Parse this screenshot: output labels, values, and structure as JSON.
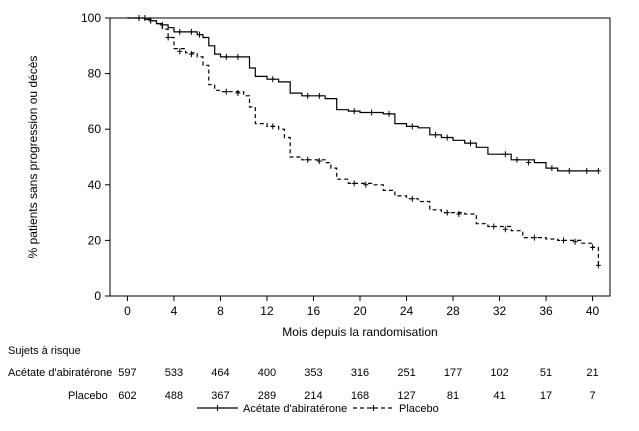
{
  "chart_data": {
    "type": "line",
    "xlabel": "Mois depuis la randomisation",
    "ylabel": "% patients sans progression ou décès",
    "xlim": [
      -1.5,
      41.5
    ],
    "ylim": [
      0,
      100
    ],
    "xticks": [
      0,
      4,
      8,
      12,
      16,
      20,
      24,
      28,
      32,
      36,
      40
    ],
    "yticks": [
      0,
      20,
      40,
      60,
      80,
      100
    ],
    "legend_position": "bottom-center",
    "grid": false,
    "series": [
      {
        "name": "Acétate d'abiratérone",
        "style": "solid",
        "color": "#000000",
        "points": [
          [
            0,
            100
          ],
          [
            1,
            100
          ],
          [
            1.5,
            99.5
          ],
          [
            2,
            99
          ],
          [
            2.5,
            98
          ],
          [
            3,
            97.5
          ],
          [
            3.5,
            96.5
          ],
          [
            4,
            95
          ],
          [
            5,
            95
          ],
          [
            6,
            94
          ],
          [
            6.5,
            93
          ],
          [
            7,
            90
          ],
          [
            7.5,
            87
          ],
          [
            8,
            86
          ],
          [
            10,
            86
          ],
          [
            10.5,
            82
          ],
          [
            11,
            79
          ],
          [
            12,
            78
          ],
          [
            13,
            77
          ],
          [
            14,
            73
          ],
          [
            15,
            72
          ],
          [
            16,
            72
          ],
          [
            17,
            71
          ],
          [
            18,
            67
          ],
          [
            19,
            66.5
          ],
          [
            20,
            66
          ],
          [
            22,
            65.5
          ],
          [
            23,
            62
          ],
          [
            24,
            61
          ],
          [
            25,
            60.5
          ],
          [
            26,
            58
          ],
          [
            27,
            57
          ],
          [
            28,
            56
          ],
          [
            29,
            55
          ],
          [
            30,
            53.5
          ],
          [
            31,
            51
          ],
          [
            32,
            51
          ],
          [
            33,
            49
          ],
          [
            35,
            48
          ],
          [
            36,
            46
          ],
          [
            37,
            45
          ],
          [
            40.5,
            45
          ]
        ],
        "censors": [
          [
            1,
            100
          ],
          [
            2,
            99
          ],
          [
            3,
            97.5
          ],
          [
            4.5,
            95
          ],
          [
            5.5,
            95
          ],
          [
            6.2,
            94
          ],
          [
            8.5,
            86
          ],
          [
            9.5,
            86
          ],
          [
            12.5,
            78
          ],
          [
            15.5,
            72
          ],
          [
            16.5,
            72
          ],
          [
            19.5,
            66.5
          ],
          [
            21,
            66
          ],
          [
            22.5,
            65.5
          ],
          [
            24.5,
            61
          ],
          [
            26.5,
            58
          ],
          [
            27.5,
            57
          ],
          [
            29.5,
            55
          ],
          [
            32.5,
            51
          ],
          [
            33.5,
            49
          ],
          [
            34.5,
            48
          ],
          [
            36.5,
            46
          ],
          [
            38,
            45
          ],
          [
            39.5,
            45
          ],
          [
            40.5,
            45
          ]
        ]
      },
      {
        "name": "Placebo",
        "style": "dashed",
        "color": "#000000",
        "points": [
          [
            0,
            100
          ],
          [
            1,
            100
          ],
          [
            2,
            99
          ],
          [
            2.5,
            98
          ],
          [
            3,
            96
          ],
          [
            3.5,
            93
          ],
          [
            4,
            89
          ],
          [
            5,
            87.5
          ],
          [
            6,
            86
          ],
          [
            6.5,
            83
          ],
          [
            7,
            76
          ],
          [
            7.5,
            74
          ],
          [
            8,
            73.5
          ],
          [
            10,
            72
          ],
          [
            10.5,
            68
          ],
          [
            11,
            62
          ],
          [
            12,
            61
          ],
          [
            13,
            60
          ],
          [
            13.5,
            57
          ],
          [
            14,
            50
          ],
          [
            15,
            49
          ],
          [
            17,
            48
          ],
          [
            17.5,
            46
          ],
          [
            18,
            42
          ],
          [
            19,
            40.5
          ],
          [
            21,
            40
          ],
          [
            22,
            38
          ],
          [
            23,
            36
          ],
          [
            24,
            35
          ],
          [
            25,
            34
          ],
          [
            26,
            31
          ],
          [
            27,
            30
          ],
          [
            29,
            29.5
          ],
          [
            30,
            26
          ],
          [
            31,
            25
          ],
          [
            33,
            23.5
          ],
          [
            34,
            21
          ],
          [
            36,
            20.5
          ],
          [
            37,
            20
          ],
          [
            39,
            19
          ],
          [
            40,
            17.5
          ],
          [
            40.5,
            11
          ]
        ],
        "censors": [
          [
            1.5,
            100
          ],
          [
            3.5,
            93
          ],
          [
            4.5,
            88
          ],
          [
            5.5,
            87
          ],
          [
            8.5,
            73.5
          ],
          [
            9.5,
            73
          ],
          [
            12.5,
            61
          ],
          [
            15.5,
            49
          ],
          [
            16.5,
            48.5
          ],
          [
            19.5,
            40.5
          ],
          [
            20.5,
            40
          ],
          [
            24.5,
            35
          ],
          [
            27.5,
            30
          ],
          [
            28.5,
            29.5
          ],
          [
            31.5,
            25
          ],
          [
            32.5,
            24
          ],
          [
            35,
            21
          ],
          [
            37.5,
            20
          ],
          [
            38.5,
            19.5
          ],
          [
            40,
            17.5
          ],
          [
            40.5,
            11
          ]
        ]
      }
    ],
    "risk_table": {
      "title": "Sujets à risque",
      "times": [
        0,
        4,
        8,
        12,
        16,
        20,
        24,
        28,
        32,
        36,
        40
      ],
      "rows": [
        {
          "label": "Acétate d'abiratérone",
          "values": [
            "597",
            "533",
            "464",
            "400",
            "353",
            "316",
            "251",
            "177",
            "102",
            "51",
            "21"
          ]
        },
        {
          "label": "Placebo",
          "values": [
            "602",
            "488",
            "367",
            "289",
            "214",
            "168",
            "127",
            "81",
            "41",
            "17",
            "7"
          ]
        }
      ]
    }
  }
}
